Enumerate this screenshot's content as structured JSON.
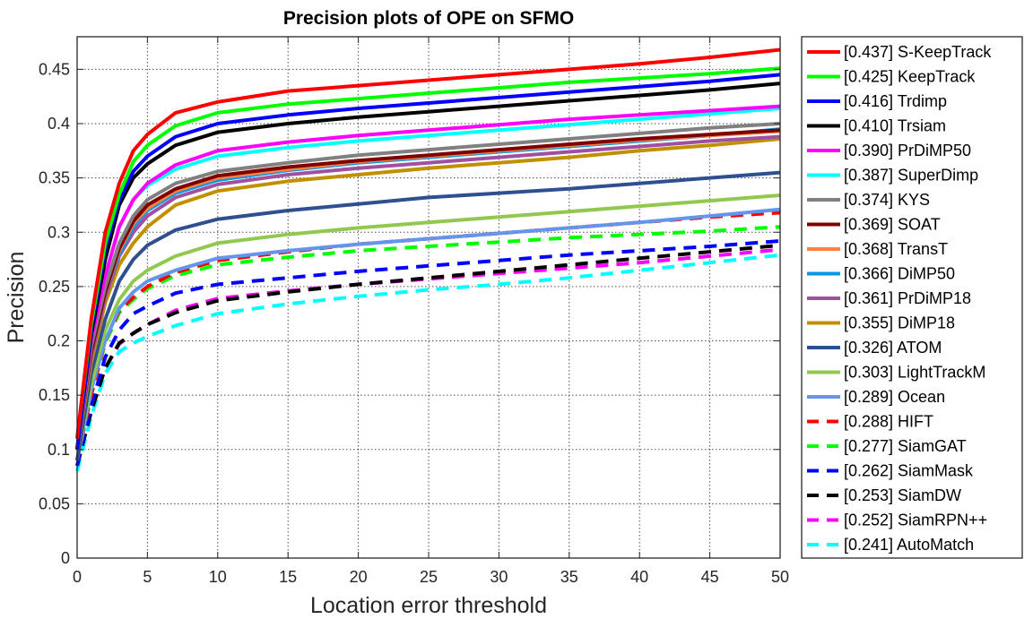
{
  "chart_data": {
    "type": "line",
    "title": "Precision plots of OPE on SFMO",
    "xlabel": "Location error threshold",
    "ylabel": "Precision",
    "xlim": [
      0,
      50
    ],
    "ylim": [
      0,
      0.48
    ],
    "xticks": [
      0,
      5,
      10,
      15,
      20,
      25,
      30,
      35,
      40,
      45,
      50
    ],
    "xtick_labels": [
      "0",
      "5",
      "10",
      "15",
      "20",
      "25",
      "30",
      "35",
      "40",
      "45",
      "50"
    ],
    "yticks": [
      0,
      0.05,
      0.1,
      0.15,
      0.2,
      0.25,
      0.3,
      0.35,
      0.4,
      0.45
    ],
    "ytick_labels": [
      "0",
      "0.05",
      "0.1",
      "0.15",
      "0.2",
      "0.25",
      "0.3",
      "0.35",
      "0.4",
      "0.45"
    ],
    "grid": true,
    "legend_position": "outside-right",
    "x": [
      0,
      1,
      2,
      3,
      4,
      5,
      7,
      10,
      15,
      20,
      25,
      30,
      35,
      40,
      45,
      50
    ],
    "series": [
      {
        "name": "[0.437] S-KeepTrack",
        "color": "#ff0000",
        "style": "solid",
        "values": [
          0.11,
          0.22,
          0.3,
          0.345,
          0.375,
          0.39,
          0.41,
          0.42,
          0.43,
          0.435,
          0.44,
          0.445,
          0.45,
          0.455,
          0.461,
          0.468
        ]
      },
      {
        "name": "[0.425] KeepTrack",
        "color": "#00ff00",
        "style": "solid",
        "values": [
          0.11,
          0.215,
          0.29,
          0.335,
          0.365,
          0.38,
          0.398,
          0.41,
          0.418,
          0.423,
          0.428,
          0.433,
          0.438,
          0.442,
          0.446,
          0.451
        ]
      },
      {
        "name": "[0.416] Trdimp",
        "color": "#0000ff",
        "style": "solid",
        "values": [
          0.1,
          0.21,
          0.285,
          0.33,
          0.356,
          0.37,
          0.388,
          0.4,
          0.408,
          0.414,
          0.419,
          0.424,
          0.429,
          0.434,
          0.439,
          0.445
        ]
      },
      {
        "name": "[0.410] Trsiam",
        "color": "#000000",
        "style": "solid",
        "values": [
          0.1,
          0.205,
          0.275,
          0.325,
          0.35,
          0.363,
          0.38,
          0.392,
          0.4,
          0.406,
          0.411,
          0.416,
          0.421,
          0.426,
          0.431,
          0.437
        ]
      },
      {
        "name": "[0.390] PrDiMP50",
        "color": "#ff00ff",
        "style": "solid",
        "values": [
          0.1,
          0.2,
          0.26,
          0.305,
          0.33,
          0.345,
          0.362,
          0.375,
          0.383,
          0.389,
          0.394,
          0.399,
          0.404,
          0.408,
          0.412,
          0.416
        ]
      },
      {
        "name": "[0.387] SuperDimp",
        "color": "#00ffff",
        "style": "solid",
        "values": [
          0.1,
          0.2,
          0.26,
          0.305,
          0.33,
          0.343,
          0.358,
          0.37,
          0.378,
          0.384,
          0.389,
          0.394,
          0.399,
          0.404,
          0.409,
          0.414
        ]
      },
      {
        "name": "[0.374] KYS",
        "color": "#808080",
        "style": "solid",
        "values": [
          0.1,
          0.195,
          0.25,
          0.29,
          0.315,
          0.33,
          0.345,
          0.356,
          0.364,
          0.371,
          0.376,
          0.381,
          0.386,
          0.391,
          0.396,
          0.4
        ]
      },
      {
        "name": "[0.369] SOAT",
        "color": "#800000",
        "style": "solid",
        "values": [
          0.1,
          0.19,
          0.245,
          0.285,
          0.31,
          0.325,
          0.34,
          0.352,
          0.36,
          0.366,
          0.371,
          0.376,
          0.381,
          0.386,
          0.39,
          0.394
        ]
      },
      {
        "name": "[0.368] TransT",
        "color": "#ff8040",
        "style": "solid",
        "values": [
          0.1,
          0.19,
          0.245,
          0.283,
          0.308,
          0.322,
          0.338,
          0.35,
          0.358,
          0.365,
          0.37,
          0.375,
          0.38,
          0.385,
          0.389,
          0.393
        ]
      },
      {
        "name": "[0.366] DiMP50",
        "color": "#0099e6",
        "style": "solid",
        "values": [
          0.1,
          0.19,
          0.245,
          0.28,
          0.305,
          0.32,
          0.336,
          0.348,
          0.357,
          0.364,
          0.369,
          0.374,
          0.379,
          0.384,
          0.389,
          0.395
        ]
      },
      {
        "name": "[0.361] PrDiMP18",
        "color": "#a050a0",
        "style": "solid",
        "values": [
          0.1,
          0.185,
          0.24,
          0.278,
          0.3,
          0.315,
          0.332,
          0.344,
          0.353,
          0.359,
          0.364,
          0.369,
          0.374,
          0.379,
          0.384,
          0.388
        ]
      },
      {
        "name": "[0.355] DiMP18",
        "color": "#c09000",
        "style": "solid",
        "values": [
          0.1,
          0.18,
          0.235,
          0.27,
          0.29,
          0.305,
          0.325,
          0.338,
          0.347,
          0.353,
          0.359,
          0.364,
          0.369,
          0.375,
          0.38,
          0.386
        ]
      },
      {
        "name": "[0.326] ATOM",
        "color": "#2e5090",
        "style": "solid",
        "values": [
          0.09,
          0.17,
          0.22,
          0.255,
          0.275,
          0.288,
          0.302,
          0.312,
          0.32,
          0.326,
          0.332,
          0.336,
          0.34,
          0.345,
          0.35,
          0.355
        ]
      },
      {
        "name": "[0.303] LightTrackM",
        "color": "#90c850",
        "style": "solid",
        "values": [
          0.09,
          0.16,
          0.21,
          0.238,
          0.255,
          0.265,
          0.278,
          0.29,
          0.298,
          0.304,
          0.309,
          0.314,
          0.319,
          0.324,
          0.329,
          0.334
        ]
      },
      {
        "name": "[0.289] Ocean",
        "color": "#6495ed",
        "style": "solid",
        "values": [
          0.09,
          0.155,
          0.2,
          0.23,
          0.245,
          0.255,
          0.265,
          0.276,
          0.283,
          0.289,
          0.294,
          0.299,
          0.304,
          0.309,
          0.315,
          0.321
        ]
      },
      {
        "name": "[0.288] HIFT",
        "color": "#ff0000",
        "style": "dashed",
        "values": [
          0.09,
          0.15,
          0.2,
          0.228,
          0.24,
          0.25,
          0.263,
          0.274,
          0.282,
          0.289,
          0.294,
          0.299,
          0.304,
          0.309,
          0.314,
          0.318
        ]
      },
      {
        "name": "[0.277] SiamGAT",
        "color": "#00ff00",
        "style": "dashed",
        "values": [
          0.09,
          0.15,
          0.198,
          0.226,
          0.238,
          0.248,
          0.26,
          0.27,
          0.277,
          0.283,
          0.287,
          0.291,
          0.295,
          0.298,
          0.301,
          0.305
        ]
      },
      {
        "name": "[0.262] SiamMask",
        "color": "#0000ff",
        "style": "dashed",
        "values": [
          0.085,
          0.14,
          0.185,
          0.21,
          0.225,
          0.232,
          0.244,
          0.252,
          0.258,
          0.264,
          0.269,
          0.274,
          0.279,
          0.283,
          0.287,
          0.292
        ]
      },
      {
        "name": "[0.253] SiamDW",
        "color": "#000000",
        "style": "dashed",
        "values": [
          0.085,
          0.135,
          0.175,
          0.198,
          0.207,
          0.215,
          0.226,
          0.237,
          0.245,
          0.252,
          0.258,
          0.264,
          0.27,
          0.276,
          0.282,
          0.288
        ]
      },
      {
        "name": "[0.252] SiamRPN++",
        "color": "#ff00ff",
        "style": "dashed",
        "values": [
          0.085,
          0.135,
          0.175,
          0.197,
          0.207,
          0.215,
          0.228,
          0.239,
          0.246,
          0.252,
          0.257,
          0.262,
          0.267,
          0.272,
          0.278,
          0.284
        ]
      },
      {
        "name": "[0.241] AutoMatch",
        "color": "#00ffff",
        "style": "dashed",
        "values": [
          0.08,
          0.13,
          0.17,
          0.19,
          0.198,
          0.204,
          0.214,
          0.225,
          0.234,
          0.241,
          0.247,
          0.252,
          0.258,
          0.265,
          0.272,
          0.279
        ]
      }
    ]
  }
}
